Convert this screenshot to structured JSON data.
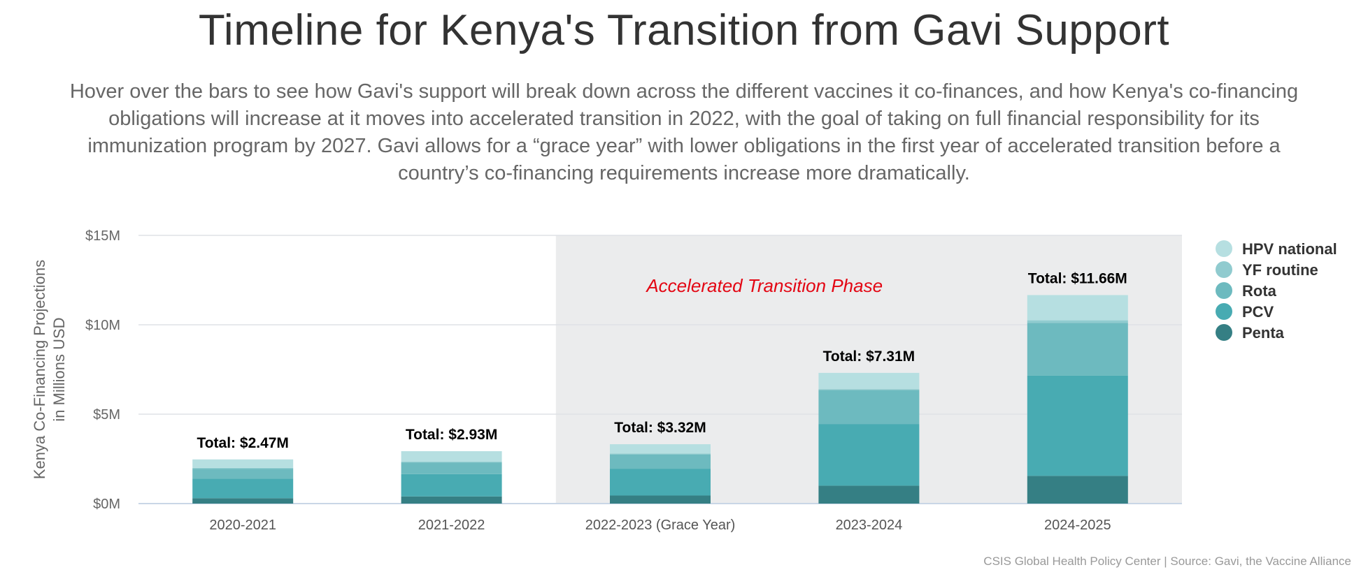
{
  "title": "Timeline for Kenya's Transition from Gavi Support",
  "subtitle": "Hover over the bars to see how Gavi's support will break down across the different vaccines it co-finances, and how Kenya's co-financing obligations will increase at it moves into accelerated transition in 2022, with the goal of taking on full financial responsibility for its immunization program by 2027. Gavi allows for a “grace year” with lower obligations in the first year of accelerated transition before a country’s co-financing requirements increase more dramatically.",
  "source": "CSIS Global Health Policy Center | Source: Gavi, the Vaccine Alliance",
  "chart_data": {
    "type": "bar",
    "stacked": true,
    "ylabel_lines": [
      "Kenya Co-Financing Projections",
      "in Millions USD"
    ],
    "ylim": [
      0,
      15
    ],
    "yticks": [
      0,
      5,
      10,
      15
    ],
    "ytick_labels": [
      "$0M",
      "$5M",
      "$10M",
      "$15M"
    ],
    "categories": [
      "2020-2021",
      "2021-2022",
      "2022-2023 (Grace Year)",
      "2023-2024",
      "2024-2025"
    ],
    "series": [
      {
        "name": "Penta",
        "color": "#357f84",
        "values": [
          0.3,
          0.4,
          0.45,
          1.0,
          1.55
        ]
      },
      {
        "name": "PCV",
        "color": "#48abb2",
        "values": [
          1.1,
          1.25,
          1.5,
          3.45,
          5.6
        ]
      },
      {
        "name": "Rota",
        "color": "#6dbabf",
        "values": [
          0.55,
          0.65,
          0.8,
          1.9,
          2.95
        ]
      },
      {
        "name": "YF routine",
        "color": "#90cbcf",
        "values": [
          0.05,
          0.05,
          0.05,
          0.05,
          0.15
        ]
      },
      {
        "name": "HPV national",
        "color": "#b6dfe1",
        "values": [
          0.47,
          0.58,
          0.52,
          0.91,
          1.41
        ]
      }
    ],
    "totals": [
      "Total: $2.47M",
      "Total: $2.93M",
      "Total: $3.32M",
      "Total: $7.31M",
      "Total: $11.66M"
    ],
    "annotation": "Accelerated Transition Phase",
    "annotation_color": "#e30613",
    "shaded_region_categories": [
      "2022-2023 (Grace Year)",
      "2023-2024",
      "2024-2025"
    ],
    "shade_color": "#ebeced",
    "legend_position": "top-right",
    "legend_order": [
      "HPV national",
      "YF routine",
      "Rota",
      "PCV",
      "Penta"
    ],
    "grid": true
  }
}
